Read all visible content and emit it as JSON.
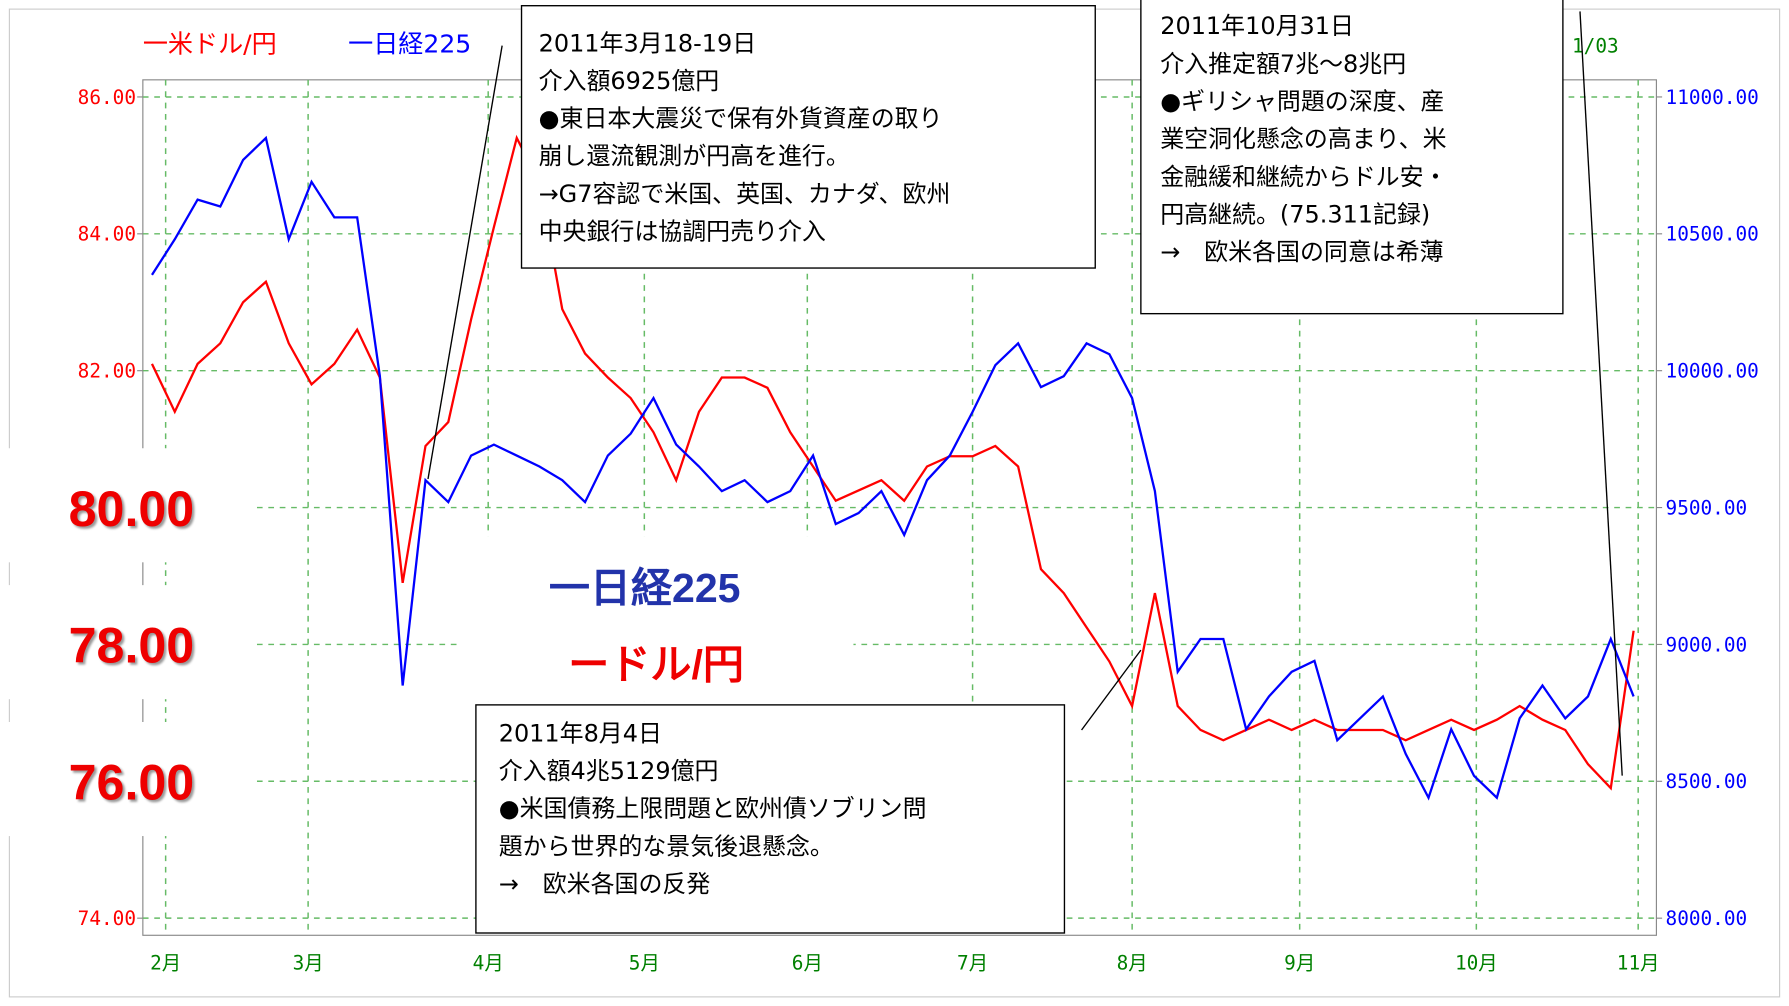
{
  "chart_data": {
    "type": "line",
    "legend": [
      "一米ドル/円",
      "一日経225"
    ],
    "corner_label": "1/03",
    "x": [
      0,
      1,
      2,
      3,
      4,
      5,
      6,
      7,
      8,
      9,
      10,
      11,
      12,
      13,
      14,
      15,
      16,
      17,
      18,
      19,
      20,
      21,
      22,
      23,
      24,
      25,
      26,
      27,
      28,
      29,
      30,
      31,
      32,
      33,
      34,
      35,
      36,
      37,
      38,
      39,
      40,
      41,
      42,
      43,
      44,
      45,
      46,
      47,
      48,
      49,
      50,
      51,
      52,
      53,
      54,
      55,
      56,
      57,
      58,
      59,
      60,
      61,
      62,
      63,
      64,
      65
    ],
    "xlim": [
      -0.4,
      66
    ],
    "xticks": [
      {
        "value": 0.6,
        "label": "2月"
      },
      {
        "value": 6.85,
        "label": "3月"
      },
      {
        "value": 14.75,
        "label": "4月"
      },
      {
        "value": 21.6,
        "label": "5月"
      },
      {
        "value": 28.75,
        "label": "6月"
      },
      {
        "value": 36,
        "label": "7月"
      },
      {
        "value": 43,
        "label": "8月"
      },
      {
        "value": 50.35,
        "label": "9月"
      },
      {
        "value": 58.1,
        "label": "10月"
      },
      {
        "value": 65.2,
        "label": "11月"
      }
    ],
    "ylim": [
      74,
      86
    ],
    "yticks": [
      {
        "value": 74,
        "label": "74.00"
      },
      {
        "value": 76,
        "label": "76.00"
      },
      {
        "value": 78,
        "label": "78.00"
      },
      {
        "value": 80,
        "label": "80.00"
      },
      {
        "value": 82,
        "label": "82.00"
      },
      {
        "value": 84,
        "label": "84.00"
      },
      {
        "value": 86,
        "label": "86.00"
      }
    ],
    "y2lim": [
      8000,
      11000
    ],
    "y2ticks": [
      {
        "value": 8000,
        "label": "8000.00"
      },
      {
        "value": 8500,
        "label": "8500.00"
      },
      {
        "value": 9000,
        "label": "9000.00"
      },
      {
        "value": 9500,
        "label": "9500.00"
      },
      {
        "value": 10000,
        "label": "10000.00"
      },
      {
        "value": 10500,
        "label": "10500.00"
      },
      {
        "value": 11000,
        "label": "11000.00"
      }
    ],
    "grid": true,
    "series": [
      {
        "name": "ードル/円",
        "color": "#ff0000",
        "values": [
          82.1,
          81.4,
          82.1,
          82.4,
          83.0,
          83.3,
          82.4,
          81.8,
          82.1,
          82.6,
          81.9,
          78.9,
          80.9,
          81.25,
          82.75,
          84.1,
          85.4,
          84.75,
          82.9,
          82.25,
          81.9,
          81.6,
          81.1,
          80.4,
          81.4,
          81.9,
          81.9,
          81.75,
          81.1,
          80.6,
          80.1,
          80.25,
          80.4,
          80.1,
          80.6,
          80.75,
          80.75,
          80.9,
          80.6,
          79.1,
          78.75,
          78.25,
          77.75,
          77.1,
          78.75,
          77.1,
          76.75,
          76.6,
          76.75,
          76.9,
          76.75,
          76.9,
          76.75,
          76.75,
          76.75,
          76.6,
          76.75,
          76.9,
          76.75,
          76.9,
          77.1,
          76.9,
          76.75,
          76.25,
          75.9,
          78.2
        ]
      },
      {
        "name": "一日経225",
        "color": "#0000ff",
        "axis": "y2",
        "values": [
          10350,
          10480,
          10625,
          10600,
          10770,
          10850,
          10480,
          10690,
          10560,
          10560,
          9980,
          8850,
          9600,
          9520,
          9690,
          9730,
          9690,
          9650,
          9600,
          9520,
          9690,
          9770,
          9900,
          9730,
          9650,
          9560,
          9600,
          9520,
          9560,
          9690,
          9440,
          9480,
          9560,
          9400,
          9600,
          9690,
          9850,
          10020,
          10100,
          9940,
          9980,
          10100,
          10060,
          9900,
          9560,
          8900,
          9020,
          9020,
          8690,
          8810,
          8900,
          8940,
          8650,
          8730,
          8810,
          8600,
          8440,
          8690,
          8520,
          8440,
          8730,
          8850,
          8730,
          8810,
          9020,
          8810
        ]
      }
    ],
    "annotations": [
      {
        "lines": [
          "2011年3月18-19日",
          "介入額6925億円",
          "●東日本大震災で保有外貨資産の取り",
          "崩し還流観測が円高を進行。",
          "→G7容認で米国、英国、カナダ、欧州",
          "中央銀行は協調円売り介入"
        ]
      },
      {
        "lines": [
          "2011年10月31日",
          "介入推定額7兆～8兆円",
          "●ギリシャ問題の深度、産",
          "業空洞化懸念の高まり、米",
          "金融緩和継続からドル安・",
          "円高継続。(75.311記録)",
          "→　欧米各国の同意は希薄"
        ]
      },
      {
        "lines": [
          "2011年8月4日",
          "介入額4兆5129億円",
          "●米国債務上限問題と欧州債ソブリン問",
          "題から世界的な景気後退懸念。",
          "→　欧米各国の反発"
        ]
      }
    ]
  }
}
